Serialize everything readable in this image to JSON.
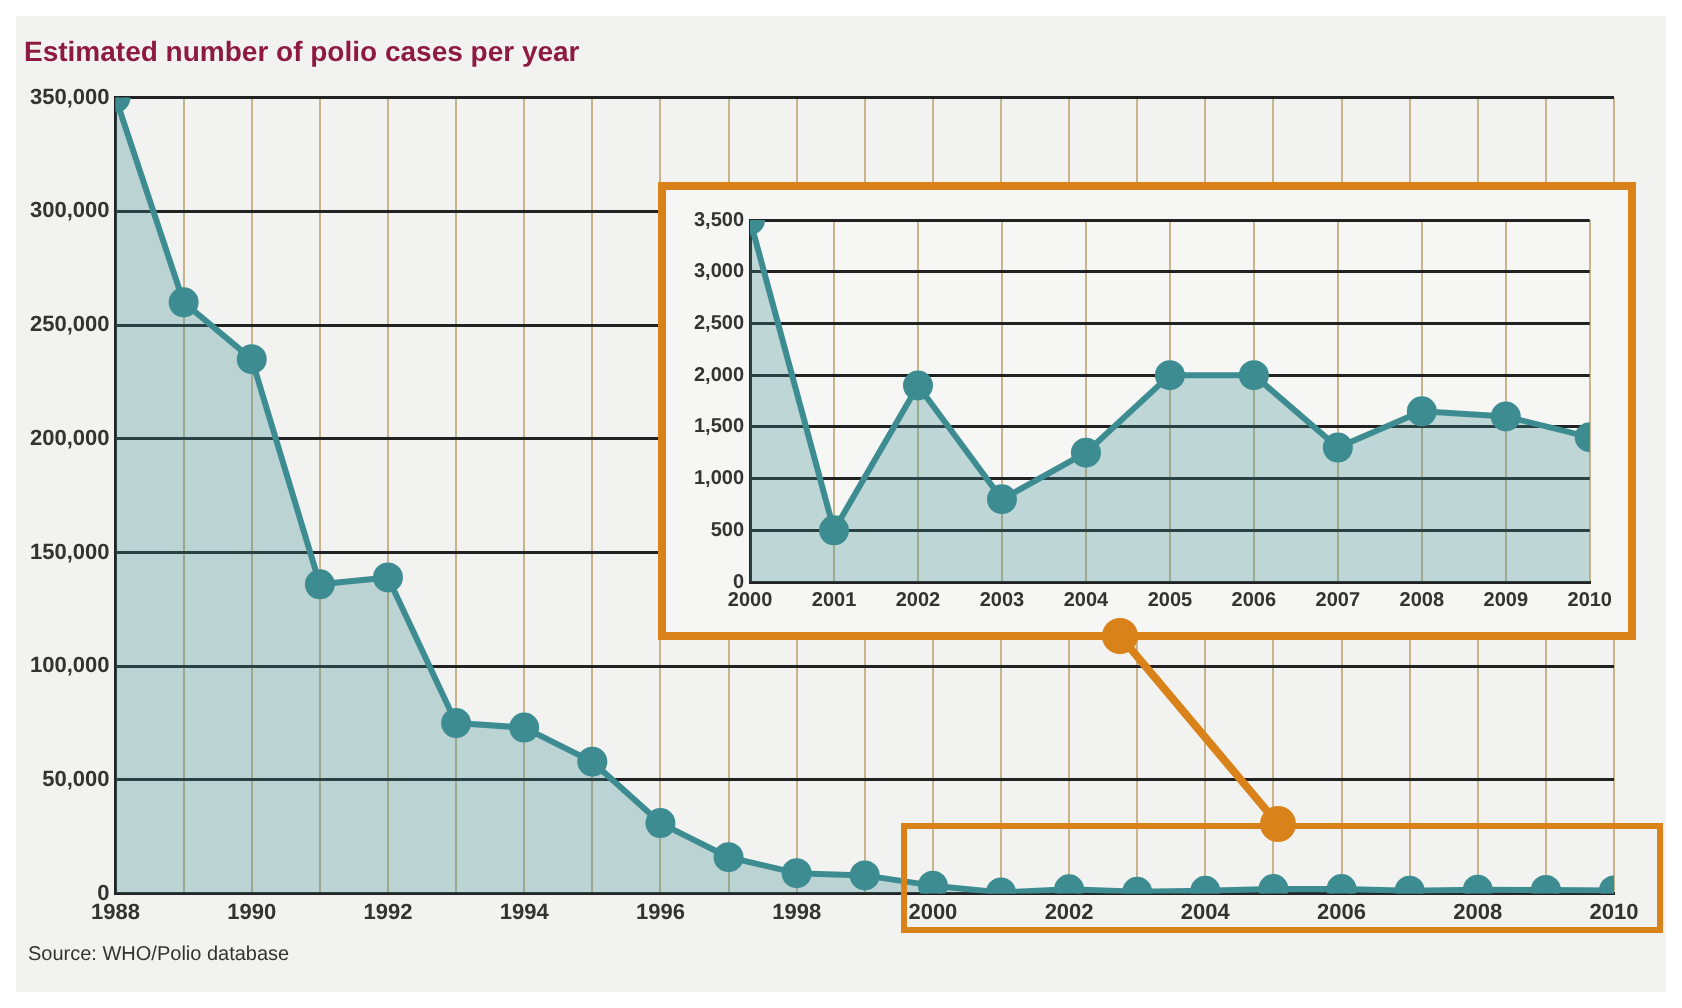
{
  "chart_data": [
    {
      "type": "area",
      "title": "Estimated number of polio cases per year",
      "x": [
        1988,
        1989,
        1990,
        1991,
        1992,
        1993,
        1994,
        1995,
        1996,
        1997,
        1998,
        1999,
        2000,
        2001,
        2002,
        2003,
        2004,
        2005,
        2006,
        2007,
        2008,
        2009,
        2010
      ],
      "series": [
        {
          "color": "#3d8c91",
          "values": [
            350000,
            260000,
            235000,
            136000,
            139000,
            75000,
            73000,
            58000,
            31000,
            16000,
            9000,
            8000,
            3500,
            500,
            1900,
            800,
            1250,
            2000,
            2000,
            1300,
            1650,
            1600,
            1400
          ]
        }
      ],
      "xlim": [
        1988,
        2010
      ],
      "xticks": [
        1988,
        {
          "value": 1989,
          "label": null
        },
        1990,
        {
          "value": 1991,
          "label": null
        },
        1992,
        {
          "value": 1993,
          "label": null
        },
        1994,
        {
          "value": 1995,
          "label": null
        },
        1996,
        {
          "value": 1997,
          "label": null
        },
        1998,
        {
          "value": 1999,
          "label": null
        },
        2000,
        {
          "value": 2001,
          "label": null
        },
        2002,
        {
          "value": 2003,
          "label": null
        },
        2004,
        {
          "value": 2005,
          "label": null
        },
        2006,
        {
          "value": 2007,
          "label": null
        },
        2008,
        {
          "value": 2009,
          "label": null
        },
        2010
      ],
      "ylim": [
        0,
        350000
      ],
      "yticks": [
        {
          "value": 0,
          "label": "0"
        },
        {
          "value": 50000,
          "label": "50,000"
        },
        {
          "value": 100000,
          "label": "100,000"
        },
        {
          "value": 150000,
          "label": "150,000"
        },
        {
          "value": 200000,
          "label": "200,000"
        },
        {
          "value": 250000,
          "label": "250,000"
        },
        {
          "value": 300000,
          "label": "300,000"
        },
        {
          "value": 350000,
          "label": "350,000"
        }
      ],
      "grid": true,
      "legend": false,
      "marker": "circle",
      "annotations": [
        "Source: WHO/Polio database"
      ]
    },
    {
      "type": "area",
      "x": [
        2000,
        2001,
        2002,
        2003,
        2004,
        2005,
        2006,
        2007,
        2008,
        2009,
        2010
      ],
      "series": [
        {
          "color": "#3d8c91",
          "values": [
            3500,
            500,
            1900,
            800,
            1250,
            2000,
            2000,
            1300,
            1650,
            1600,
            1400
          ]
        }
      ],
      "xlim": [
        2000,
        2010
      ],
      "xticks": [
        2000,
        2001,
        2002,
        2003,
        2004,
        2005,
        2006,
        2007,
        2008,
        2009,
        2010
      ],
      "ylim": [
        0,
        3500
      ],
      "yticks": [
        {
          "value": 0,
          "label": "0"
        },
        500,
        {
          "value": 1000,
          "label": "1,000"
        },
        {
          "value": 1500,
          "label": "1,500"
        },
        {
          "value": 2000,
          "label": "2,000"
        },
        {
          "value": 2500,
          "label": "2,500"
        },
        {
          "value": 3000,
          "label": "3,000"
        },
        {
          "value": 3500,
          "label": "3,500"
        }
      ],
      "grid": true,
      "legend": false,
      "marker": "circle"
    }
  ]
}
